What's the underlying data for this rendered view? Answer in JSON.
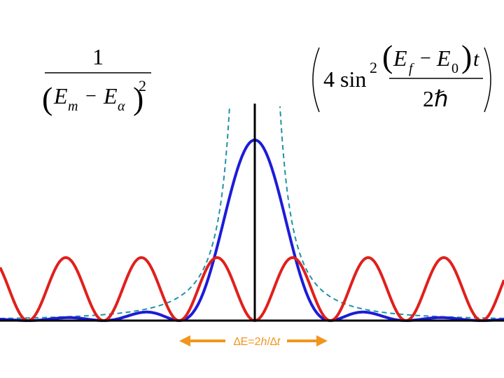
{
  "colors": {
    "red": "#e0201c",
    "blue": "#1c1cd8",
    "teal": "#1e93a6",
    "axis": "#000000",
    "arrow": "#f0961e"
  },
  "formula_left": {
    "numerator": "1",
    "paren_open": "(",
    "var_E": "E",
    "sub_m": "m",
    "minus": "−",
    "sub_alpha": "α",
    "paren_close": ")",
    "exponent": "2"
  },
  "formula_right": {
    "big_paren_open": "(",
    "coef": "4 sin",
    "exponent": "2",
    "paren_open": "(",
    "var_Ef": "E",
    "sub_f": "f",
    "minus": "−",
    "var_E0": "E",
    "sub_0": "0",
    "paren_close": ")",
    "t": "t",
    "denominator": "2ℏ",
    "big_paren_close": ")"
  },
  "arrow_label": {
    "delta1": "∆",
    "E": "E",
    "eq": "=2",
    "h": "h",
    "slash": "/",
    "delta2": "∆",
    "t": "t"
  }
}
